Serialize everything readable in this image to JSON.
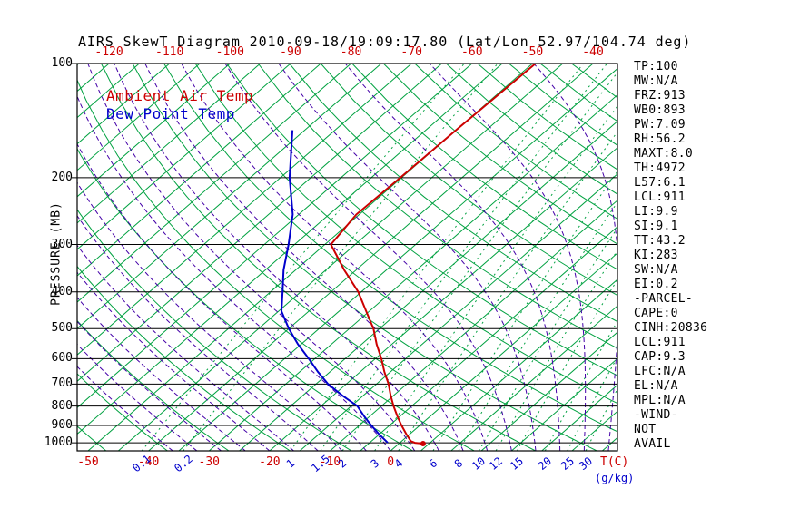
{
  "colors": {
    "temp": "#cc0000",
    "dew": "#0000cc",
    "isotherm": "#00a140",
    "dry_adiabat": "#00a140",
    "mixing_ratio": "#00a140",
    "moist_adiabat": "#4400a8",
    "isobar": "#000000"
  },
  "stats_panel": {
    "lines": [
      "TP:100",
      "MW:N/A",
      "FRZ:913",
      "WB0:893",
      "PW:7.09",
      "RH:56.2",
      "MAXT:8.0",
      "TH:4972",
      "L57:6.1",
      "LCL:911",
      "LI:9.9",
      "SI:9.1",
      "TT:43.2",
      "KI:283",
      "SW:N/A",
      "EI:0.2",
      "-PARCEL-",
      "CAPE:0",
      "CINH:20836",
      "LCL:911",
      "CAP:9.3",
      "LFC:N/A",
      "EL:N/A",
      "MPL:N/A",
      "-WIND-",
      "NOT",
      "AVAIL"
    ]
  },
  "chart_data": {
    "type": "line",
    "title": "AIRS SkewT Diagram 2010-09-18/19:09:17.80 (Lat/Lon 52.97/104.74 deg)",
    "ylabel": "PRESSURE (MB)",
    "xlabel": "T(C)",
    "x2label": "(g/kg)",
    "yscale": "log",
    "ylim": [
      1050,
      100
    ],
    "pressure_ticks": [
      100,
      200,
      300,
      400,
      500,
      600,
      700,
      800,
      900,
      1000
    ],
    "top_temp_ticks_c": [
      -120,
      -110,
      -100,
      -90,
      -80,
      -70,
      -60,
      -50,
      -40
    ],
    "bottom_temp_ticks_c": [
      -50,
      -40,
      -30,
      -20,
      -10,
      0
    ],
    "mixing_ratio_ticks_gkg": [
      0.1,
      0.2,
      1,
      1.5,
      2,
      3,
      4,
      6,
      8,
      10,
      12,
      15,
      20,
      25,
      30
    ],
    "isotherm_range_c": [
      -135,
      45
    ],
    "isotherm_step_c": 5,
    "dry_adiabat_theta_k": {
      "min": 213,
      "max": 443,
      "step": 10
    },
    "moist_adiabat_start_c": {
      "min": -36,
      "max": 36,
      "step": 4
    },
    "series": [
      {
        "name": "Ambient Air Temp",
        "color": "#cc0000",
        "points_p_mb_t_c": [
          [
            1005,
            4
          ],
          [
            1000,
            2.5
          ],
          [
            990,
            1.5
          ],
          [
            950,
            -0.5
          ],
          [
            900,
            -3
          ],
          [
            850,
            -5.5
          ],
          [
            800,
            -8
          ],
          [
            750,
            -10.5
          ],
          [
            700,
            -13
          ],
          [
            650,
            -16
          ],
          [
            600,
            -19
          ],
          [
            550,
            -22.5
          ],
          [
            500,
            -26
          ],
          [
            450,
            -30.5
          ],
          [
            400,
            -35.5
          ],
          [
            350,
            -42
          ],
          [
            300,
            -49
          ],
          [
            250,
            -50.5
          ],
          [
            200,
            -50.2
          ],
          [
            150,
            -50
          ],
          [
            100,
            -49.5
          ]
        ]
      },
      {
        "name": "Dew Point Temp",
        "color": "#0000cc",
        "points_p_mb_t_c": [
          [
            1000,
            -2
          ],
          [
            950,
            -5
          ],
          [
            900,
            -8
          ],
          [
            850,
            -11
          ],
          [
            800,
            -14
          ],
          [
            750,
            -18.5
          ],
          [
            700,
            -23
          ],
          [
            650,
            -27
          ],
          [
            600,
            -31
          ],
          [
            550,
            -35.5
          ],
          [
            500,
            -40
          ],
          [
            450,
            -44.5
          ],
          [
            400,
            -48
          ],
          [
            350,
            -52
          ],
          [
            300,
            -56
          ],
          [
            250,
            -61
          ],
          [
            200,
            -68.5
          ],
          [
            150,
            -77
          ]
        ]
      }
    ]
  }
}
